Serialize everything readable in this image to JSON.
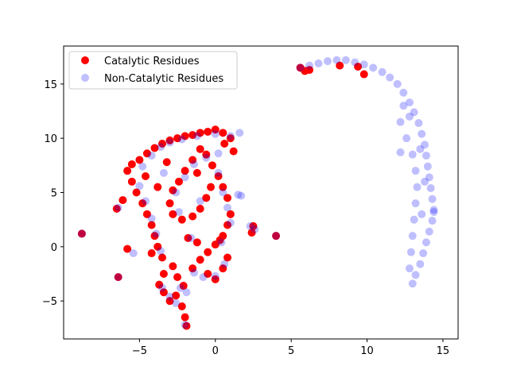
{
  "chart_data": {
    "type": "scatter",
    "xlim": [
      -10,
      16
    ],
    "ylim": [
      -8.5,
      18.5
    ],
    "xticks": [
      -5,
      0,
      5,
      10,
      15
    ],
    "yticks": [
      -5,
      0,
      5,
      10,
      15
    ],
    "grid": false,
    "legend_placement": "top-left",
    "series": [
      {
        "name": "Catalytic Residues",
        "color": "#ff0000",
        "alpha": 1.0,
        "points": [
          [
            -8.8,
            1.2
          ],
          [
            -6.5,
            3.5
          ],
          [
            -6.1,
            4.3
          ],
          [
            -6.4,
            -2.8
          ],
          [
            -5.8,
            -0.2
          ],
          [
            -4.2,
            -0.6
          ],
          [
            -5.8,
            7.0
          ],
          [
            -5.5,
            7.6
          ],
          [
            -5.0,
            8.0
          ],
          [
            -4.5,
            8.6
          ],
          [
            -4.0,
            9.1
          ],
          [
            -3.5,
            9.5
          ],
          [
            -3.0,
            9.8
          ],
          [
            -2.5,
            10.0
          ],
          [
            -2.0,
            10.2
          ],
          [
            -1.5,
            10.3
          ],
          [
            -1.0,
            10.5
          ],
          [
            -0.5,
            10.6
          ],
          [
            0.0,
            10.8
          ],
          [
            0.5,
            10.5
          ],
          [
            1.0,
            10.0
          ],
          [
            -5.5,
            6.0
          ],
          [
            -5.2,
            5.0
          ],
          [
            -4.8,
            4.0
          ],
          [
            -4.5,
            3.0
          ],
          [
            -4.2,
            2.0
          ],
          [
            -4.0,
            1.0
          ],
          [
            -3.8,
            0.0
          ],
          [
            -3.5,
            -1.0
          ],
          [
            -3.7,
            -3.5
          ],
          [
            -3.4,
            -4.2
          ],
          [
            -3.0,
            -5.0
          ],
          [
            -2.6,
            -4.5
          ],
          [
            -2.2,
            -5.5
          ],
          [
            -2.0,
            -6.5
          ],
          [
            -1.9,
            -7.3
          ],
          [
            -2.1,
            -3.6
          ],
          [
            -2.5,
            -2.8
          ],
          [
            -1.5,
            -2.0
          ],
          [
            -1.0,
            -1.2
          ],
          [
            -0.5,
            -0.5
          ],
          [
            0.0,
            0.2
          ],
          [
            0.5,
            1.0
          ],
          [
            0.8,
            2.0
          ],
          [
            1.0,
            3.0
          ],
          [
            0.8,
            4.5
          ],
          [
            0.5,
            5.5
          ],
          [
            0.2,
            6.5
          ],
          [
            -0.2,
            7.5
          ],
          [
            -0.6,
            8.5
          ],
          [
            -1.0,
            9.0
          ],
          [
            -1.5,
            8.0
          ],
          [
            -2.0,
            7.0
          ],
          [
            -2.4,
            6.0
          ],
          [
            -2.8,
            5.2
          ],
          [
            -3.0,
            4.0
          ],
          [
            -2.8,
            3.0
          ],
          [
            -2.2,
            2.5
          ],
          [
            -1.5,
            2.8
          ],
          [
            -1.0,
            3.5
          ],
          [
            -0.6,
            4.5
          ],
          [
            -0.3,
            5.5
          ],
          [
            -1.8,
            0.8
          ],
          [
            -1.2,
            0.4
          ],
          [
            -0.5,
            -2.5
          ],
          [
            0.0,
            -3.0
          ],
          [
            0.5,
            -2.0
          ],
          [
            0.8,
            -1.0
          ],
          [
            0.3,
            0.6
          ],
          [
            2.4,
            1.3
          ],
          [
            2.5,
            1.9
          ],
          [
            4.0,
            1.0
          ],
          [
            -3.2,
            7.8
          ],
          [
            -4.6,
            6.5
          ],
          [
            -3.8,
            5.5
          ],
          [
            -1.2,
            6.8
          ],
          [
            0.6,
            9.5
          ],
          [
            1.2,
            8.8
          ],
          [
            -2.8,
            -1.8
          ],
          [
            -3.4,
            -2.5
          ],
          [
            5.6,
            16.5
          ],
          [
            5.9,
            16.2
          ],
          [
            6.2,
            16.3
          ],
          [
            8.2,
            16.7
          ],
          [
            9.4,
            16.6
          ],
          [
            9.8,
            15.9
          ]
        ]
      },
      {
        "name": "Non-Catalytic Residues",
        "color": "#0000ff",
        "alpha": 0.25,
        "points": [
          [
            -8.8,
            1.2
          ],
          [
            -6.4,
            -2.8
          ],
          [
            -6.4,
            3.6
          ],
          [
            -5.4,
            -0.6
          ],
          [
            -4.8,
            7.4
          ],
          [
            -4.2,
            8.4
          ],
          [
            -3.6,
            9.2
          ],
          [
            -3.0,
            9.6
          ],
          [
            -2.2,
            9.9
          ],
          [
            -1.2,
            10.2
          ],
          [
            0.0,
            10.4
          ],
          [
            1.0,
            10.2
          ],
          [
            1.6,
            10.5
          ],
          [
            -5.0,
            5.6
          ],
          [
            -4.6,
            4.2
          ],
          [
            -4.2,
            2.6
          ],
          [
            -3.9,
            1.2
          ],
          [
            -3.6,
            -0.4
          ],
          [
            -3.5,
            -3.8
          ],
          [
            -3.0,
            -4.6
          ],
          [
            -2.6,
            -5.2
          ],
          [
            -2.3,
            -3.8
          ],
          [
            -2.0,
            -7.2
          ],
          [
            -1.9,
            -4.2
          ],
          [
            -1.4,
            -2.4
          ],
          [
            -0.8,
            -2.8
          ],
          [
            0.0,
            -2.7
          ],
          [
            0.6,
            -1.6
          ],
          [
            0.4,
            0.4
          ],
          [
            -1.6,
            0.8
          ],
          [
            -2.4,
            3.2
          ],
          [
            -2.6,
            5.0
          ],
          [
            -2.0,
            6.4
          ],
          [
            -1.4,
            7.6
          ],
          [
            -0.6,
            8.2
          ],
          [
            0.2,
            6.8
          ],
          [
            0.5,
            5.0
          ],
          [
            0.8,
            3.6
          ],
          [
            1.0,
            2.2
          ],
          [
            1.5,
            4.8
          ],
          [
            1.7,
            4.7
          ],
          [
            2.3,
            1.9
          ],
          [
            2.6,
            1.6
          ],
          [
            4.0,
            1.0
          ],
          [
            -3.4,
            6.8
          ],
          [
            -1.0,
            4.2
          ],
          [
            0.2,
            8.6
          ],
          [
            5.6,
            16.5
          ],
          [
            6.2,
            16.7
          ],
          [
            6.8,
            16.9
          ],
          [
            7.4,
            17.1
          ],
          [
            8.0,
            17.2
          ],
          [
            8.6,
            17.2
          ],
          [
            9.2,
            17.0
          ],
          [
            9.8,
            16.8
          ],
          [
            10.4,
            16.5
          ],
          [
            11.0,
            16.1
          ],
          [
            11.5,
            15.6
          ],
          [
            12.0,
            15.0
          ],
          [
            12.4,
            14.2
          ],
          [
            12.8,
            13.3
          ],
          [
            13.1,
            12.4
          ],
          [
            13.4,
            11.4
          ],
          [
            13.6,
            10.4
          ],
          [
            13.8,
            9.4
          ],
          [
            13.9,
            8.4
          ],
          [
            14.0,
            7.4
          ],
          [
            14.1,
            6.4
          ],
          [
            14.2,
            5.4
          ],
          [
            14.3,
            4.4
          ],
          [
            14.4,
            3.4
          ],
          [
            14.3,
            2.4
          ],
          [
            14.1,
            1.4
          ],
          [
            13.9,
            0.4
          ],
          [
            13.7,
            -0.6
          ],
          [
            13.5,
            -1.6
          ],
          [
            13.2,
            -2.6
          ],
          [
            13.0,
            -3.4
          ],
          [
            12.8,
            -2.0
          ],
          [
            12.9,
            -0.5
          ],
          [
            13.0,
            1.0
          ],
          [
            13.1,
            2.5
          ],
          [
            13.2,
            4.0
          ],
          [
            13.3,
            5.5
          ],
          [
            13.2,
            7.0
          ],
          [
            13.0,
            8.5
          ],
          [
            12.6,
            10.0
          ],
          [
            12.2,
            11.5
          ],
          [
            12.4,
            13.0
          ],
          [
            12.2,
            8.7
          ],
          [
            13.6,
            3.0
          ],
          [
            13.8,
            6.0
          ],
          [
            14.4,
            3.2
          ],
          [
            13.5,
            9.0
          ],
          [
            12.8,
            12.0
          ]
        ]
      }
    ]
  }
}
